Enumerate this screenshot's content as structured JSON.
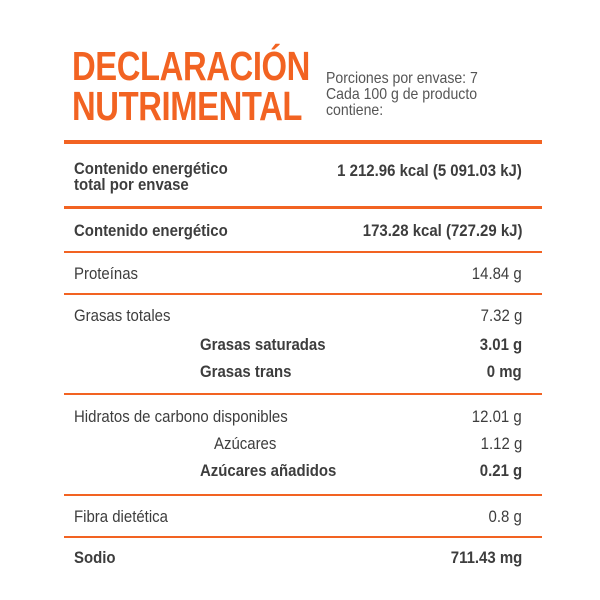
{
  "title": [
    "DECLARACIÓN",
    "NUTRIMENTAL"
  ],
  "servings": [
    "Porciones  por envase: 7",
    "Cada 100 g de producto",
    "contiene:"
  ],
  "rows": {
    "energy_total_line1": "Contenido energético",
    "energy_total_line2": "total por envase",
    "energy_total_value": "1 212.96 kcal (5 091.03 kJ)",
    "energy_label": "Contenido energético",
    "energy_value": "173.28 kcal (727.29 kJ)",
    "protein_label": "Proteínas",
    "protein_value": "14.84 g",
    "fat_label": "Grasas totales",
    "fat_value": "7.32 g",
    "satfat_label": "Grasas saturadas",
    "satfat_value": "3.01 g",
    "transfat_label": "Grasas trans",
    "transfat_value": "0 mg",
    "carbs_label": "Hidratos de carbono disponibles",
    "carbs_value": "12.01 g",
    "sugars_label": "Azúcares",
    "sugars_value": "1.12 g",
    "addsugars_label": "Azúcares añadidos",
    "addsugars_value": "0.21 g",
    "fiber_label": "Fibra dietética",
    "fiber_value": "0.8 g",
    "sodium_label": "Sodio",
    "sodium_value": "711.43 mg"
  },
  "colors": {
    "accent": "#f26322",
    "text": "#3d3d3d"
  }
}
